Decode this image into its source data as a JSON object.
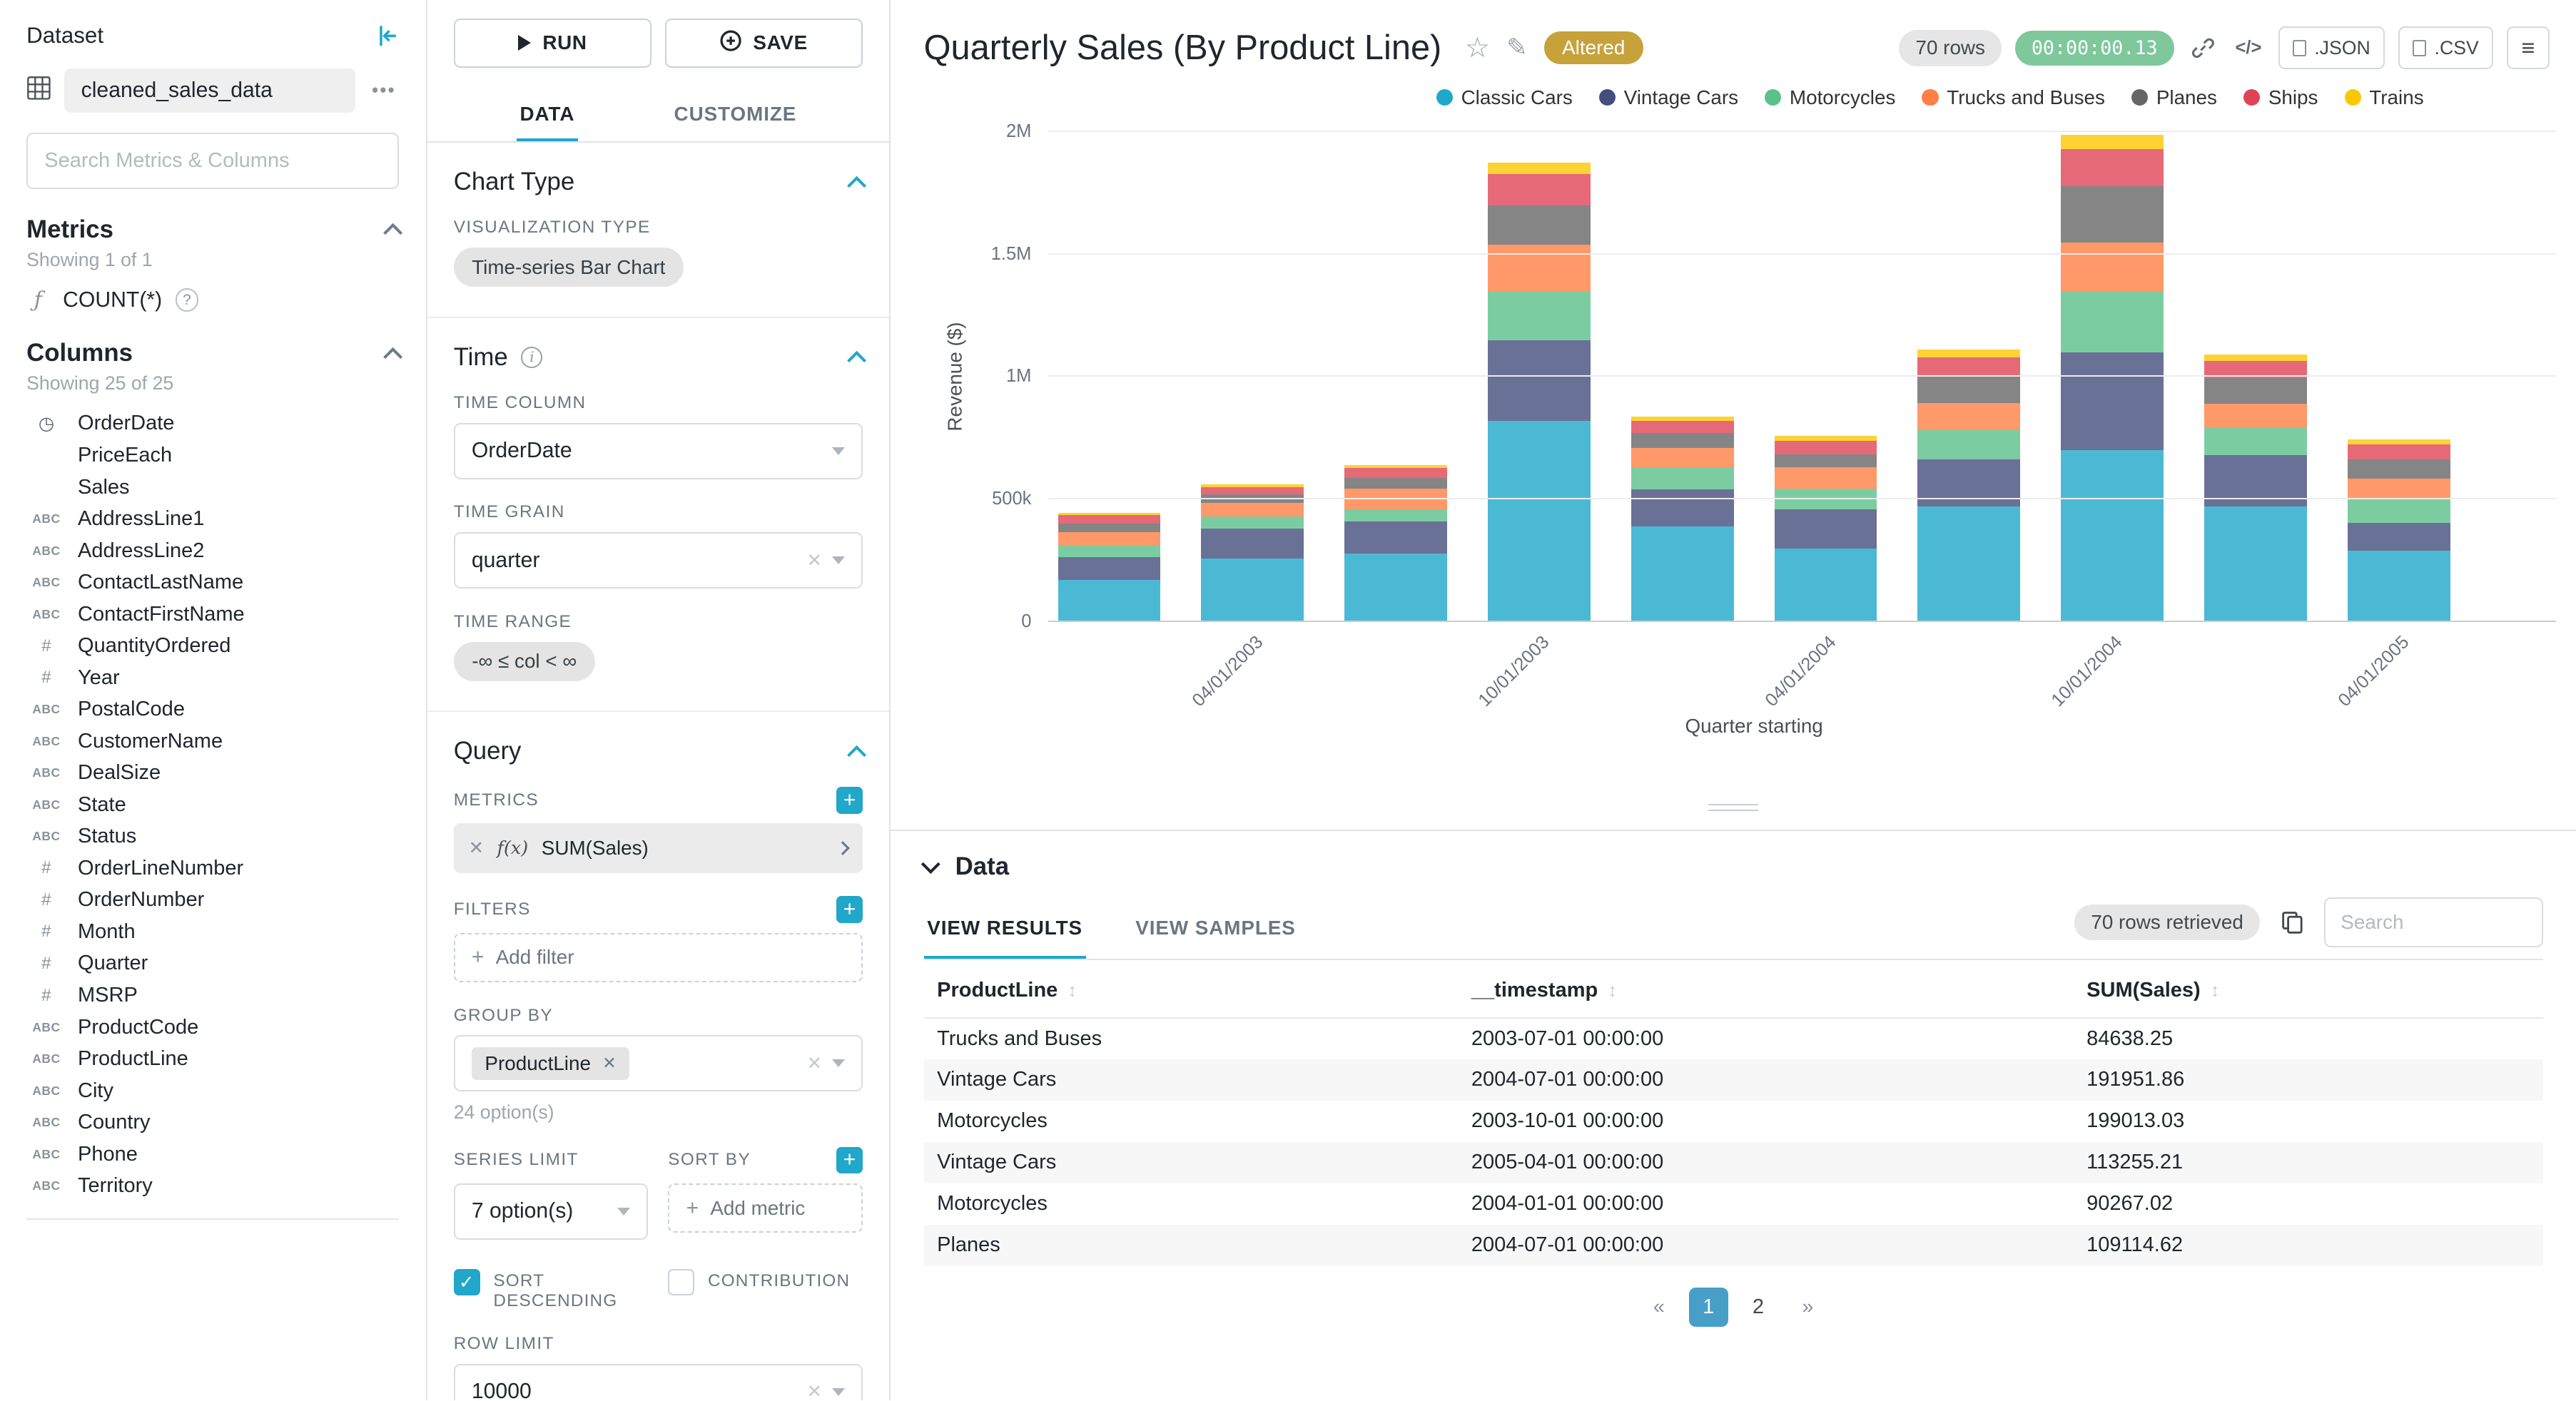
{
  "dataset_panel": {
    "title": "Dataset",
    "dataset_name": "cleaned_sales_data",
    "search_placeholder": "Search Metrics & Columns",
    "metrics": {
      "title": "Metrics",
      "showing": "Showing 1 of 1",
      "items": [
        {
          "label": "COUNT(*)"
        }
      ]
    },
    "columns": {
      "title": "Columns",
      "showing": "Showing 25 of 25",
      "items": [
        {
          "type": "time",
          "label": "OrderDate"
        },
        {
          "type": "none",
          "label": "PriceEach"
        },
        {
          "type": "none",
          "label": "Sales"
        },
        {
          "type": "text",
          "label": "AddressLine1"
        },
        {
          "type": "text",
          "label": "AddressLine2"
        },
        {
          "type": "text",
          "label": "ContactLastName"
        },
        {
          "type": "text",
          "label": "ContactFirstName"
        },
        {
          "type": "num",
          "label": "QuantityOrdered"
        },
        {
          "type": "num",
          "label": "Year"
        },
        {
          "type": "text",
          "label": "PostalCode"
        },
        {
          "type": "text",
          "label": "CustomerName"
        },
        {
          "type": "text",
          "label": "DealSize"
        },
        {
          "type": "text",
          "label": "State"
        },
        {
          "type": "text",
          "label": "Status"
        },
        {
          "type": "num",
          "label": "OrderLineNumber"
        },
        {
          "type": "num",
          "label": "OrderNumber"
        },
        {
          "type": "num",
          "label": "Month"
        },
        {
          "type": "num",
          "label": "Quarter"
        },
        {
          "type": "num",
          "label": "MSRP"
        },
        {
          "type": "text",
          "label": "ProductCode"
        },
        {
          "type": "text",
          "label": "ProductLine"
        },
        {
          "type": "text",
          "label": "City"
        },
        {
          "type": "text",
          "label": "Country"
        },
        {
          "type": "text",
          "label": "Phone"
        },
        {
          "type": "text",
          "label": "Territory"
        }
      ]
    }
  },
  "control_panel": {
    "run_label": "RUN",
    "save_label": "SAVE",
    "tabs": [
      "DATA",
      "CUSTOMIZE"
    ],
    "chart_type_section": {
      "title": "Chart Type",
      "viz_label": "VISUALIZATION TYPE",
      "viz_value": "Time-series Bar Chart"
    },
    "time_section": {
      "title": "Time",
      "column_label": "TIME COLUMN",
      "column_value": "OrderDate",
      "grain_label": "TIME GRAIN",
      "grain_value": "quarter",
      "range_label": "TIME RANGE",
      "range_value": "-∞ ≤ col < ∞"
    },
    "query_section": {
      "title": "Query",
      "metrics_label": "METRICS",
      "metric_prefix": "f(x)",
      "metric_value": "SUM(Sales)",
      "filters_label": "FILTERS",
      "add_filter_label": "Add filter",
      "group_by_label": "GROUP BY",
      "group_by_value": "ProductLine",
      "group_by_hint": "24 option(s)",
      "series_limit_label": "SERIES LIMIT",
      "series_limit_value": "7 option(s)",
      "sort_by_label": "SORT BY",
      "add_metric_label": "Add metric",
      "sort_descending_label": "SORT DESCENDING",
      "contribution_label": "CONTRIBUTION",
      "row_limit_label": "ROW LIMIT",
      "row_limit_value": "10000"
    }
  },
  "chart_header": {
    "title": "Quarterly Sales (By Product Line)",
    "altered_badge": "Altered",
    "rows_badge": "70 rows",
    "timer_badge": "00:00:00.13",
    "json_label": ".JSON",
    "csv_label": ".CSV"
  },
  "chart_data": {
    "type": "bar",
    "stacked": true,
    "title": "Quarterly Sales (By Product Line)",
    "xlabel": "Quarter starting",
    "ylabel": "Revenue ($)",
    "ylim": [
      0,
      2000000
    ],
    "y_ticks": [
      "0",
      "500k",
      "1M",
      "1.5M",
      "2M"
    ],
    "grid": true,
    "legend_position": "top-right",
    "categories": [
      "01/01/2003",
      "04/01/2003",
      "07/01/2003",
      "10/01/2003",
      "01/01/2004",
      "04/01/2004",
      "07/01/2004",
      "10/01/2004",
      "01/01/2005",
      "04/01/2005"
    ],
    "x_tick_labels": [
      "04/01/2003",
      "10/01/2003",
      "04/01/2004",
      "10/01/2004",
      "04/01/2005"
    ],
    "series": [
      {
        "name": "Classic Cars",
        "color": "#1FA8C9",
        "values": [
          170000,
          260000,
          280000,
          820000,
          390000,
          300000,
          470000,
          700000,
          470000,
          290000
        ]
      },
      {
        "name": "Vintage Cars",
        "color": "#454E7C",
        "values": [
          95000,
          120000,
          130000,
          330000,
          150000,
          160000,
          191951.86,
          400000,
          210000,
          113255.21
        ]
      },
      {
        "name": "Motorcycles",
        "color": "#5AC189",
        "values": [
          45000,
          50000,
          50000,
          199013.03,
          90267.02,
          85000,
          120000,
          250000,
          110000,
          95000
        ]
      },
      {
        "name": "Trucks and Buses",
        "color": "#FF7F44",
        "values": [
          55000,
          55000,
          84638.25,
          190000,
          80000,
          85000,
          110000,
          200000,
          100000,
          85000
        ]
      },
      {
        "name": "Planes",
        "color": "#666666",
        "values": [
          35000,
          35000,
          45000,
          160000,
          60000,
          55000,
          109114.62,
          230000,
          105000,
          80000
        ]
      },
      {
        "name": "Ships",
        "color": "#E04355",
        "values": [
          35000,
          30000,
          40000,
          130000,
          50000,
          55000,
          80000,
          150000,
          70000,
          60000
        ]
      },
      {
        "name": "Trains",
        "color": "#FCC700",
        "values": [
          10000,
          12000,
          12000,
          45000,
          18000,
          20000,
          30000,
          60000,
          25000,
          20000
        ]
      }
    ]
  },
  "data_panel": {
    "title": "Data",
    "tabs": [
      "VIEW RESULTS",
      "VIEW SAMPLES"
    ],
    "rows_retrieved": "70 rows retrieved",
    "search_placeholder": "Search",
    "table": {
      "columns": [
        "ProductLine",
        "__timestamp",
        "SUM(Sales)"
      ],
      "rows": [
        [
          "Trucks and Buses",
          "2003-07-01 00:00:00",
          "84638.25"
        ],
        [
          "Vintage Cars",
          "2004-07-01 00:00:00",
          "191951.86"
        ],
        [
          "Motorcycles",
          "2003-10-01 00:00:00",
          "199013.03"
        ],
        [
          "Vintage Cars",
          "2005-04-01 00:00:00",
          "113255.21"
        ],
        [
          "Motorcycles",
          "2004-01-01 00:00:00",
          "90267.02"
        ],
        [
          "Planes",
          "2004-07-01 00:00:00",
          "109114.62"
        ]
      ]
    },
    "pagination": [
      "«",
      "1",
      "2",
      "»"
    ],
    "active_page": "1"
  }
}
